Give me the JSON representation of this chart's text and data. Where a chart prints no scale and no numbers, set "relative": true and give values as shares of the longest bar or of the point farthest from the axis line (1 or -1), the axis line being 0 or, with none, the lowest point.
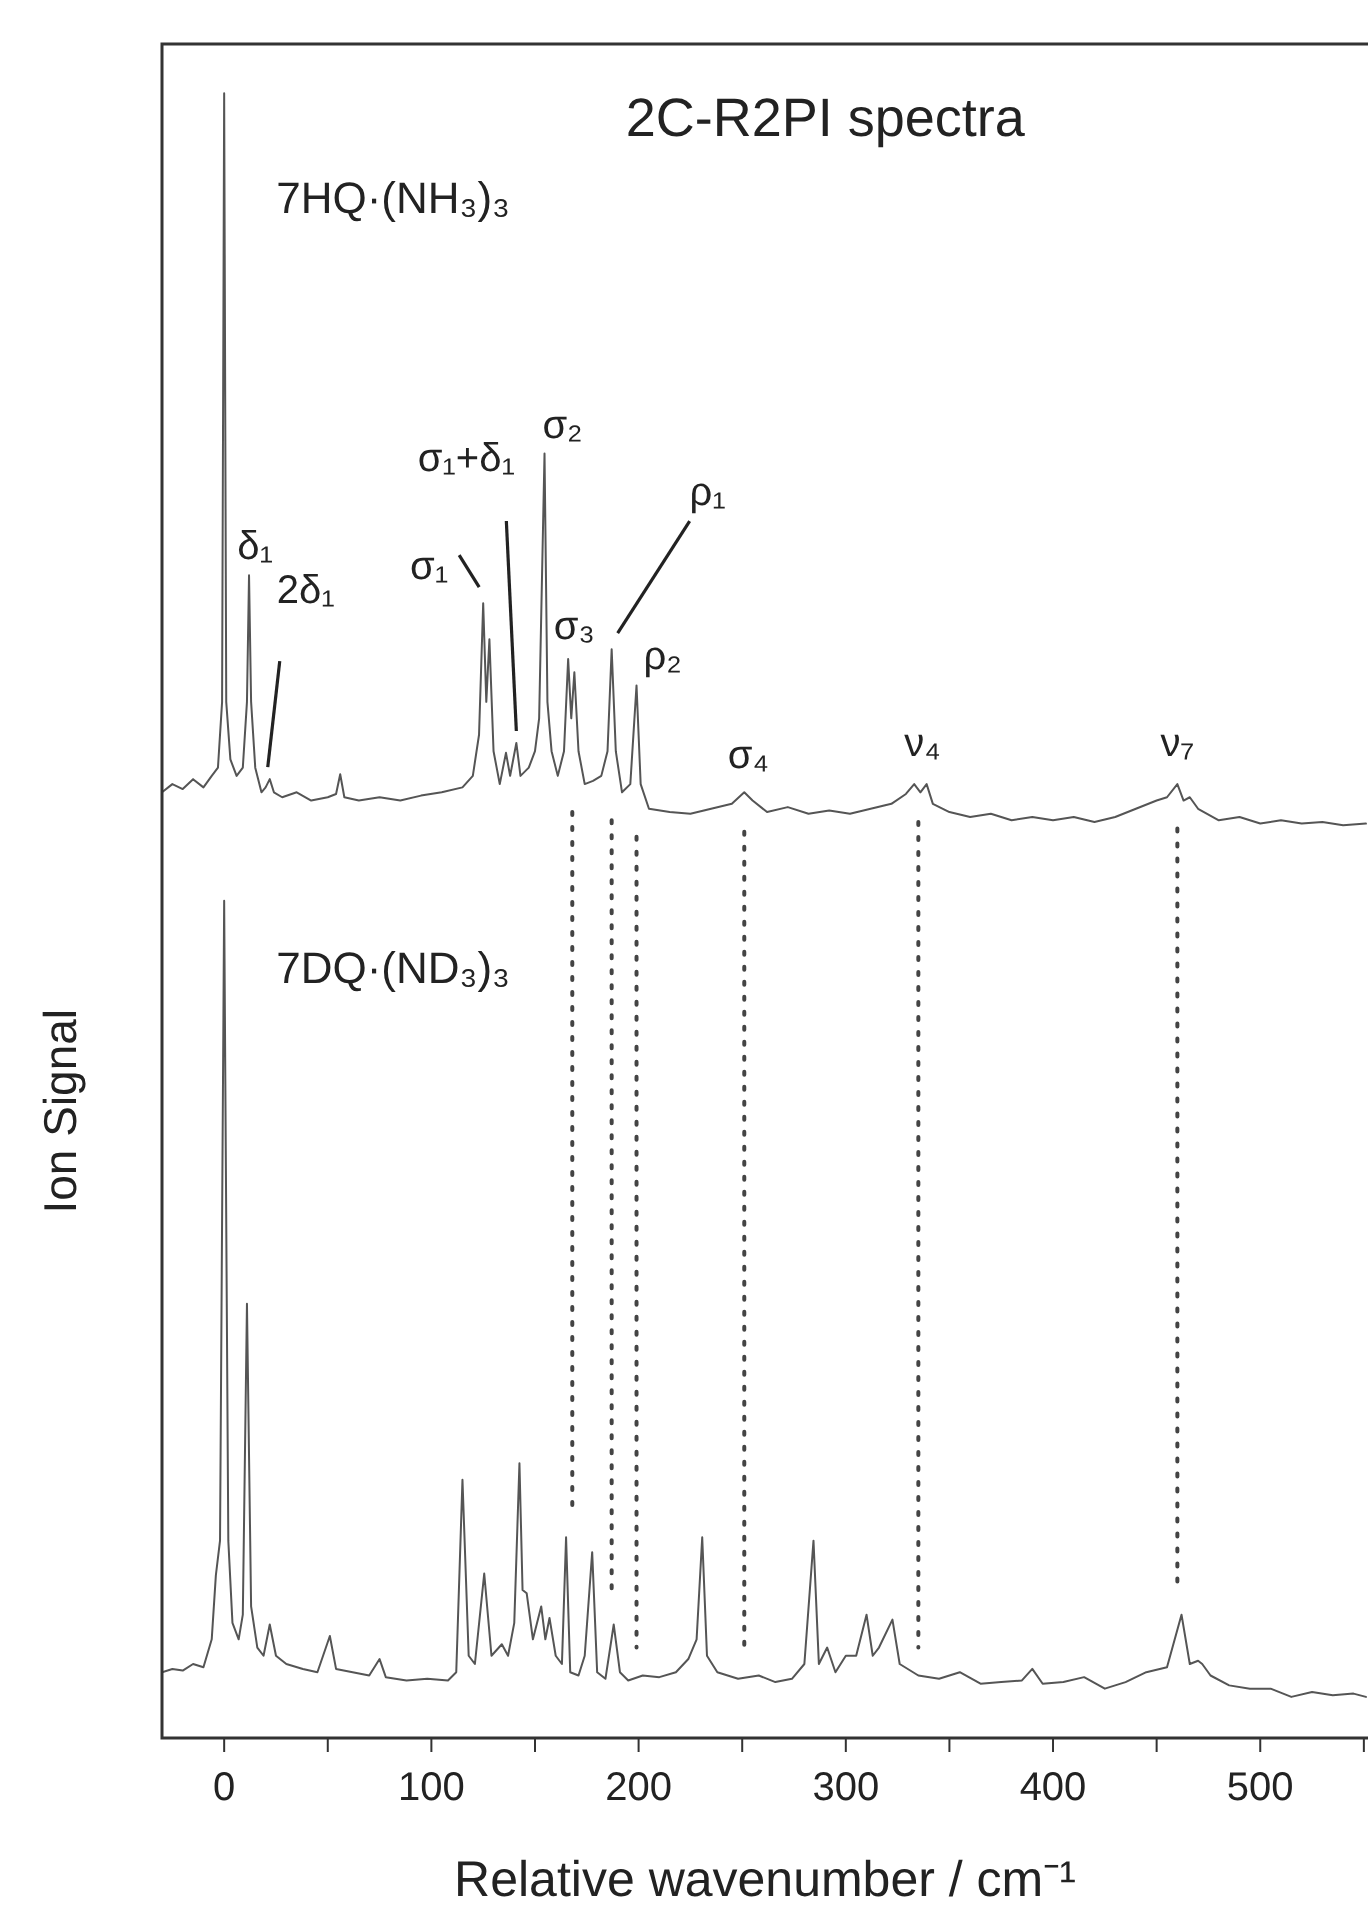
{
  "chart_data": {
    "type": "line",
    "title": "2C-R2PI spectra",
    "xlabel": "Relative wavenumber / cm⁻¹",
    "ylabel": "Ion Signal",
    "relative": true,
    "xlim": [
      -30,
      552
    ],
    "xticks": [
      0,
      {
        "value": 50,
        "label": null
      },
      100,
      {
        "value": 150,
        "label": null
      },
      200,
      {
        "value": 250,
        "label": null
      },
      300,
      {
        "value": 350,
        "label": null
      },
      400,
      {
        "value": 450,
        "label": null
      },
      500,
      {
        "value": 550,
        "label": null
      }
    ],
    "grid": false,
    "marker": "none",
    "line_style": "solid",
    "ref_lines": [
      {
        "axis": "x",
        "value": 168,
        "color": "#444444",
        "line_style": "dotted"
      },
      {
        "axis": "x",
        "value": 187,
        "color": "#444444",
        "line_style": "dotted"
      },
      {
        "axis": "x",
        "value": 199,
        "color": "#444444",
        "line_style": "dotted"
      },
      {
        "axis": "x",
        "value": 251,
        "color": "#444444",
        "line_style": "dotted"
      },
      {
        "axis": "x",
        "value": 335,
        "color": "#444444",
        "line_style": "dotted"
      },
      {
        "axis": "x",
        "value": 460,
        "color": "#444444",
        "line_style": "dotted"
      }
    ],
    "series": [
      {
        "name": "7HQ·(NH₃)₃",
        "color": "#555555",
        "x": [
          -30,
          -25,
          -20,
          -15,
          -10,
          -6,
          -3,
          -1,
          0,
          1,
          3,
          6,
          9,
          11,
          12,
          13,
          15,
          18,
          20,
          22,
          24,
          28,
          35,
          42,
          50,
          54,
          56,
          58,
          65,
          75,
          85,
          95,
          105,
          115,
          120,
          123,
          125,
          126.5,
          128,
          130,
          133,
          136,
          138,
          141,
          143,
          147,
          150,
          152,
          154.6,
          156,
          158,
          161,
          164,
          166,
          167.5,
          169,
          171,
          174,
          178,
          182,
          185,
          187,
          189,
          192,
          196,
          199,
          201,
          205,
          215,
          225,
          235,
          245,
          251,
          255,
          262,
          272,
          282,
          292,
          302,
          312,
          322,
          329,
          333,
          336,
          339,
          342,
          350,
          360,
          370,
          380,
          390,
          400,
          410,
          420,
          430,
          440,
          450,
          455,
          460,
          463,
          466,
          470,
          480,
          490,
          500,
          510,
          520,
          530,
          540,
          551
        ],
        "values": [
          0.575,
          0.58,
          0.577,
          0.583,
          0.578,
          0.585,
          0.59,
          0.63,
          1.0,
          0.63,
          0.595,
          0.585,
          0.59,
          0.63,
          0.707,
          0.63,
          0.59,
          0.575,
          0.578,
          0.583,
          0.575,
          0.572,
          0.575,
          0.57,
          0.572,
          0.574,
          0.586,
          0.572,
          0.57,
          0.572,
          0.57,
          0.573,
          0.575,
          0.578,
          0.585,
          0.61,
          0.69,
          0.63,
          0.668,
          0.6,
          0.58,
          0.599,
          0.585,
          0.605,
          0.585,
          0.59,
          0.6,
          0.62,
          0.781,
          0.63,
          0.6,
          0.585,
          0.6,
          0.656,
          0.62,
          0.648,
          0.6,
          0.58,
          0.582,
          0.585,
          0.6,
          0.662,
          0.6,
          0.575,
          0.58,
          0.64,
          0.58,
          0.565,
          0.563,
          0.562,
          0.565,
          0.568,
          0.575,
          0.57,
          0.563,
          0.566,
          0.562,
          0.564,
          0.562,
          0.565,
          0.568,
          0.574,
          0.58,
          0.575,
          0.58,
          0.568,
          0.563,
          0.56,
          0.562,
          0.558,
          0.56,
          0.558,
          0.56,
          0.557,
          0.56,
          0.565,
          0.57,
          0.572,
          0.58,
          0.57,
          0.572,
          0.565,
          0.558,
          0.56,
          0.556,
          0.558,
          0.556,
          0.557,
          0.555,
          0.556
        ]
      },
      {
        "name": "7DQ·(ND₃)₃",
        "color": "#555555",
        "x": [
          -30,
          -25,
          -20,
          -15,
          -10,
          -6,
          -4,
          -2,
          0,
          2,
          4,
          7,
          9,
          11,
          13,
          16,
          19,
          22,
          25,
          30,
          38,
          45,
          51,
          54,
          62,
          70,
          75,
          78,
          88,
          98,
          108,
          112,
          115,
          118,
          121,
          125.5,
          129,
          134,
          137,
          140,
          142.5,
          144,
          146,
          149,
          153,
          155,
          157,
          160,
          163,
          165,
          167,
          171,
          174,
          177.6,
          180,
          184,
          188,
          191,
          195,
          202,
          210,
          218,
          224,
          228,
          230.7,
          233,
          238,
          248,
          258,
          266,
          274,
          280,
          284.4,
          287,
          291,
          295,
          300,
          305,
          310,
          313,
          316,
          322.5,
          326,
          335,
          345,
          355,
          365,
          375,
          385,
          390,
          395,
          405,
          415,
          425,
          435,
          445,
          455,
          462,
          466,
          470,
          472,
          476,
          485,
          495,
          505,
          515,
          525,
          535,
          545,
          551
        ],
        "values": [
          0.04,
          0.042,
          0.041,
          0.045,
          0.043,
          0.06,
          0.099,
          0.12,
          0.509,
          0.12,
          0.07,
          0.06,
          0.075,
          0.264,
          0.08,
          0.055,
          0.05,
          0.069,
          0.05,
          0.045,
          0.042,
          0.04,
          0.062,
          0.042,
          0.04,
          0.038,
          0.048,
          0.037,
          0.035,
          0.036,
          0.035,
          0.04,
          0.157,
          0.05,
          0.045,
          0.1,
          0.05,
          0.057,
          0.05,
          0.07,
          0.167,
          0.09,
          0.088,
          0.06,
          0.08,
          0.06,
          0.073,
          0.05,
          0.045,
          0.122,
          0.04,
          0.038,
          0.05,
          0.113,
          0.04,
          0.036,
          0.069,
          0.04,
          0.035,
          0.038,
          0.037,
          0.04,
          0.048,
          0.06,
          0.122,
          0.05,
          0.04,
          0.036,
          0.038,
          0.034,
          0.036,
          0.045,
          0.12,
          0.045,
          0.055,
          0.04,
          0.05,
          0.05,
          0.075,
          0.05,
          0.055,
          0.072,
          0.045,
          0.038,
          0.036,
          0.04,
          0.033,
          0.034,
          0.035,
          0.042,
          0.033,
          0.034,
          0.037,
          0.03,
          0.034,
          0.04,
          0.043,
          0.075,
          0.045,
          0.047,
          0.045,
          0.038,
          0.032,
          0.03,
          0.03,
          0.025,
          0.028,
          0.026,
          0.027,
          0.025
        ]
      }
    ],
    "annotations": [
      {
        "text": "δ₁",
        "x": 12,
        "y": 0.707
      },
      {
        "text": "2δ₁",
        "x": 22,
        "y": 0.583
      },
      {
        "text": "σ₁+δ₁",
        "x": 141,
        "y": 0.605
      },
      {
        "text": "σ₁",
        "x": 125,
        "y": 0.69
      },
      {
        "text": "σ₂",
        "x": 154.6,
        "y": 0.781
      },
      {
        "text": "σ₃",
        "x": 168,
        "y": 0.656
      },
      {
        "text": "ρ₁",
        "x": 187,
        "y": 0.662
      },
      {
        "text": "ρ₂",
        "x": 199,
        "y": 0.64
      },
      {
        "text": "σ₄",
        "x": 251,
        "y": 0.575
      },
      {
        "text": "ν₄",
        "x": 335,
        "y": 0.58
      },
      {
        "text": "ν₇",
        "x": 460,
        "y": 0.58
      }
    ]
  }
}
